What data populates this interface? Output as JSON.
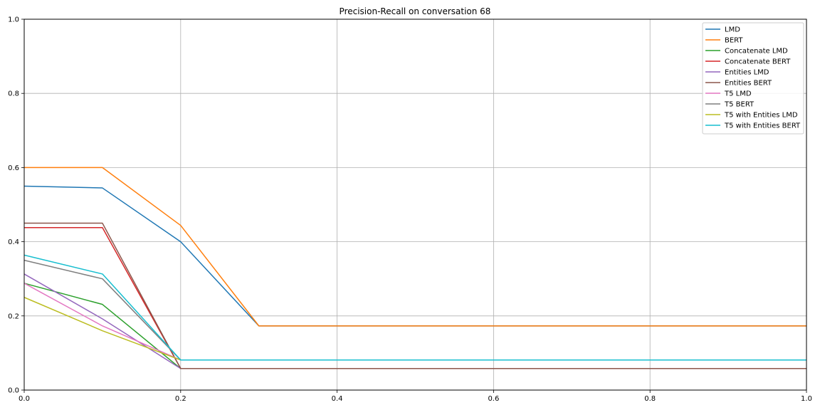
{
  "chart_data": {
    "type": "line",
    "title": "Precision-Recall on conversation 68",
    "xlabel": "",
    "ylabel": "",
    "xlim": [
      0,
      1
    ],
    "ylim": [
      0,
      1
    ],
    "x_ticks": [
      "0.0",
      "0.2",
      "0.4",
      "0.6",
      "0.8",
      "1.0"
    ],
    "y_ticks": [
      "0.0",
      "0.2",
      "0.4",
      "0.6",
      "0.8",
      "1.0"
    ],
    "grid": true,
    "legend_position": "top-right",
    "x": [
      0,
      0.1,
      0.2,
      0.3,
      0.4,
      0.5,
      0.6,
      0.7,
      0.8,
      0.9,
      1.0
    ],
    "series": [
      {
        "name": "LMD",
        "color": "#1f77b4",
        "values": [
          0.55,
          0.545,
          0.4,
          0.173,
          0.173,
          0.173,
          0.173,
          0.173,
          0.173,
          0.173,
          0.173
        ]
      },
      {
        "name": "BERT",
        "color": "#ff7f0e",
        "values": [
          0.6,
          0.6,
          0.444,
          0.173,
          0.173,
          0.173,
          0.173,
          0.173,
          0.173,
          0.173,
          0.173
        ]
      },
      {
        "name": "Concatenate LMD",
        "color": "#2ca02c",
        "values": [
          0.288,
          0.231,
          0.058,
          0.058,
          0.058,
          0.058,
          0.058,
          0.058,
          0.058,
          0.058,
          0.058
        ]
      },
      {
        "name": "Concatenate BERT",
        "color": "#d62728",
        "values": [
          0.438,
          0.438,
          0.058,
          0.058,
          0.058,
          0.058,
          0.058,
          0.058,
          0.058,
          0.058,
          0.058
        ]
      },
      {
        "name": "Entities LMD",
        "color": "#9467bd",
        "values": [
          0.313,
          0.192,
          0.058,
          0.058,
          0.058,
          0.058,
          0.058,
          0.058,
          0.058,
          0.058,
          0.058
        ]
      },
      {
        "name": "Entities BERT",
        "color": "#8c564b",
        "values": [
          0.45,
          0.45,
          0.058,
          0.058,
          0.058,
          0.058,
          0.058,
          0.058,
          0.058,
          0.058,
          0.058
        ]
      },
      {
        "name": "T5 LMD",
        "color": "#e377c2",
        "values": [
          0.288,
          0.173,
          0.081,
          0.081,
          0.081,
          0.081,
          0.081,
          0.081,
          0.081,
          0.081,
          0.081
        ]
      },
      {
        "name": "T5 BERT",
        "color": "#7f7f7f",
        "values": [
          0.35,
          0.3,
          0.081,
          0.081,
          0.081,
          0.081,
          0.081,
          0.081,
          0.081,
          0.081,
          0.081
        ]
      },
      {
        "name": "T5 with Entities LMD",
        "color": "#bcbd22",
        "values": [
          0.25,
          0.16,
          0.081,
          0.081,
          0.081,
          0.081,
          0.081,
          0.081,
          0.081,
          0.081,
          0.081
        ]
      },
      {
        "name": "T5 with Entities BERT",
        "color": "#17becf",
        "values": [
          0.364,
          0.313,
          0.081,
          0.081,
          0.081,
          0.081,
          0.081,
          0.081,
          0.081,
          0.081,
          0.081
        ]
      }
    ]
  }
}
